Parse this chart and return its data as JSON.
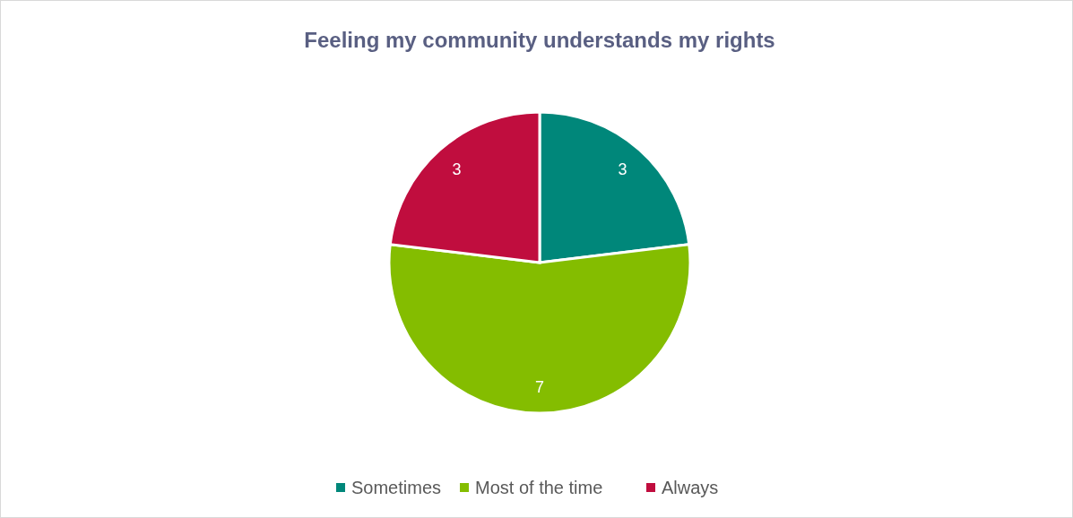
{
  "chart_data": {
    "type": "pie",
    "title": "Feeling my community understands my rights",
    "categories": [
      "Sometimes",
      "Most of the time",
      "Always"
    ],
    "values": [
      3,
      7,
      3
    ],
    "colors": [
      "#00877a",
      "#84bd00",
      "#c00d3e"
    ],
    "data_labels": true,
    "legend": "bottom"
  }
}
